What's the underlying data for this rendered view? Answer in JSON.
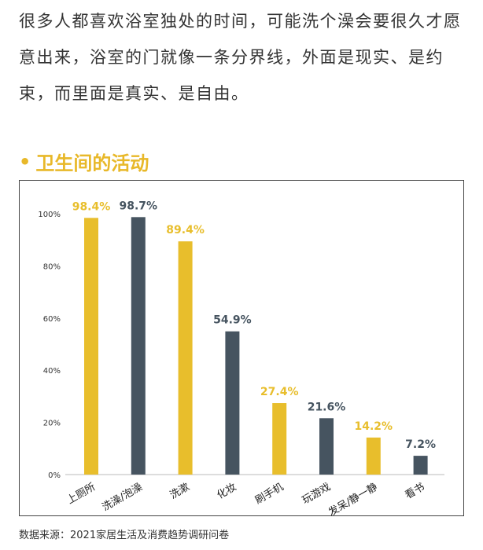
{
  "intro_text": "很多人都喜欢浴室独处的时间，可能洗个澡会要很久才愿意出来，浴室的门就像一条分界线，外面是现实、是约束，而里面是真实、是自由。",
  "section_title": "卫生间的活动",
  "source_note": "数据来源：2021家居生活及消费趋势调研问卷",
  "colors": {
    "yellow": "#e8be2c",
    "slate": "#465460",
    "title": "#e8b829"
  },
  "chart_data": {
    "type": "bar",
    "categories": [
      "上厕所",
      "洗澡/泡澡",
      "洗漱",
      "化妆",
      "刷手机",
      "玩游戏",
      "发呆/静一静",
      "看书"
    ],
    "values": [
      98.4,
      98.7,
      89.4,
      54.9,
      27.4,
      21.6,
      14.2,
      7.2
    ],
    "value_labels": [
      "98.4%",
      "98.7%",
      "89.4%",
      "54.9%",
      "27.4%",
      "21.6%",
      "14.2%",
      "7.2%"
    ],
    "bar_colors": [
      "#e8be2c",
      "#465460",
      "#e8be2c",
      "#465460",
      "#e8be2c",
      "#465460",
      "#e8be2c",
      "#465460"
    ],
    "ylim": [
      0,
      100
    ],
    "yticks": [
      "0%",
      "20%",
      "40%",
      "60%",
      "80%",
      "100%"
    ],
    "ytick_values": [
      0,
      20,
      40,
      60,
      80,
      100
    ],
    "grid": false,
    "title": "",
    "xlabel": "",
    "ylabel": ""
  }
}
